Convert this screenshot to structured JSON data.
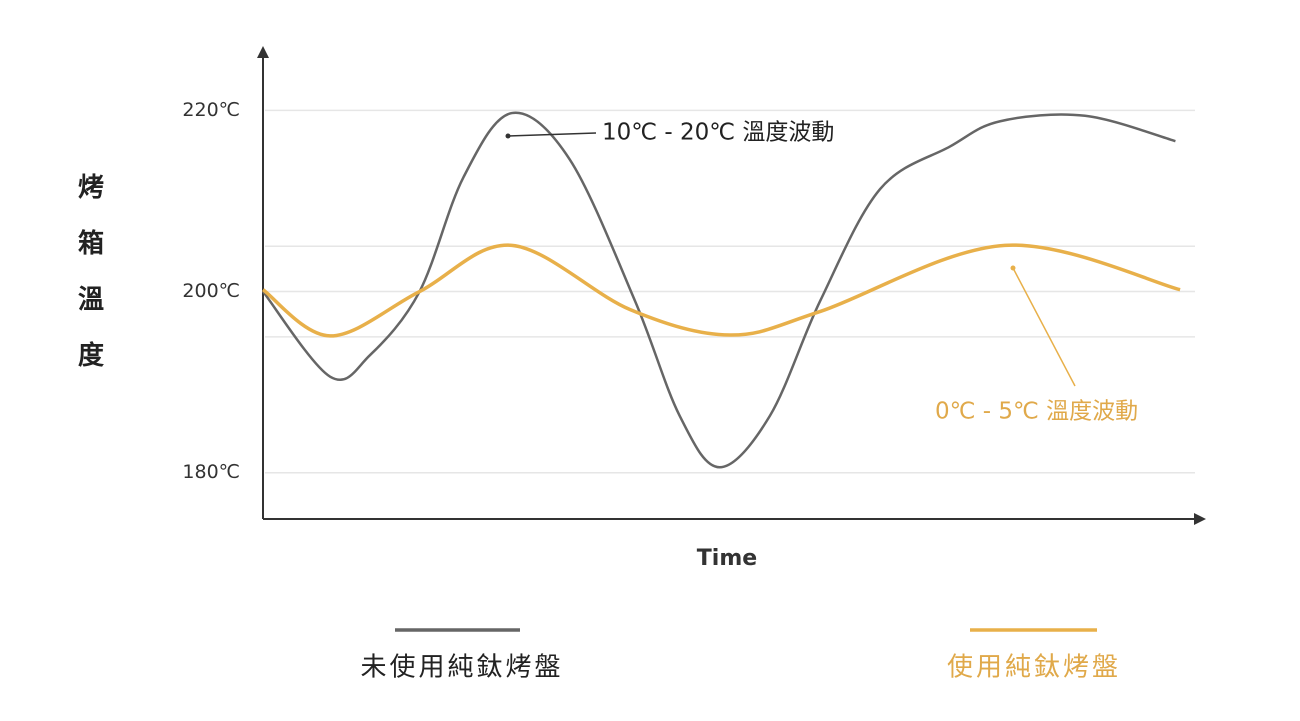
{
  "chart_data": {
    "type": "line",
    "y_label": "烤箱溫度",
    "x_label": "Time",
    "xlim": [
      0,
      100
    ],
    "ylim": [
      175,
      226
    ],
    "yticks": [
      {
        "value": 180,
        "label": "180℃"
      },
      {
        "value": 200,
        "label": "200℃"
      },
      {
        "value": 220,
        "label": "220℃"
      }
    ],
    "ygrid": [
      180,
      195,
      200,
      205,
      220
    ],
    "series": [
      {
        "name": "未使用純鈦烤盤",
        "color": "#666666",
        "x": [
          0,
          7.2,
          11.5,
          16.8,
          21.5,
          26.7,
          32.9,
          39.9,
          44.7,
          49,
          54.4,
          59.8,
          66.2,
          73.7,
          79.1,
          88.2,
          97.9
        ],
        "values": [
          200,
          190.6,
          193,
          200,
          212.6,
          219.7,
          214.6,
          199,
          186.3,
          180.6,
          186.3,
          199,
          211.3,
          216,
          218.8,
          219.4,
          216.6
        ]
      },
      {
        "name": "使用純鈦烤盤",
        "color": "#e8b04a",
        "x": [
          0,
          7.2,
          16.8,
          26.7,
          39.4,
          50.1,
          59.8,
          79.6,
          98.4
        ],
        "values": [
          200.2,
          195.1,
          200,
          205.1,
          198,
          195.2,
          197.8,
          205.1,
          200.2
        ]
      }
    ],
    "annotations": [
      "10℃ - 20℃ 溫度波動",
      "0℃ - 5℃ 溫度波動"
    ]
  }
}
